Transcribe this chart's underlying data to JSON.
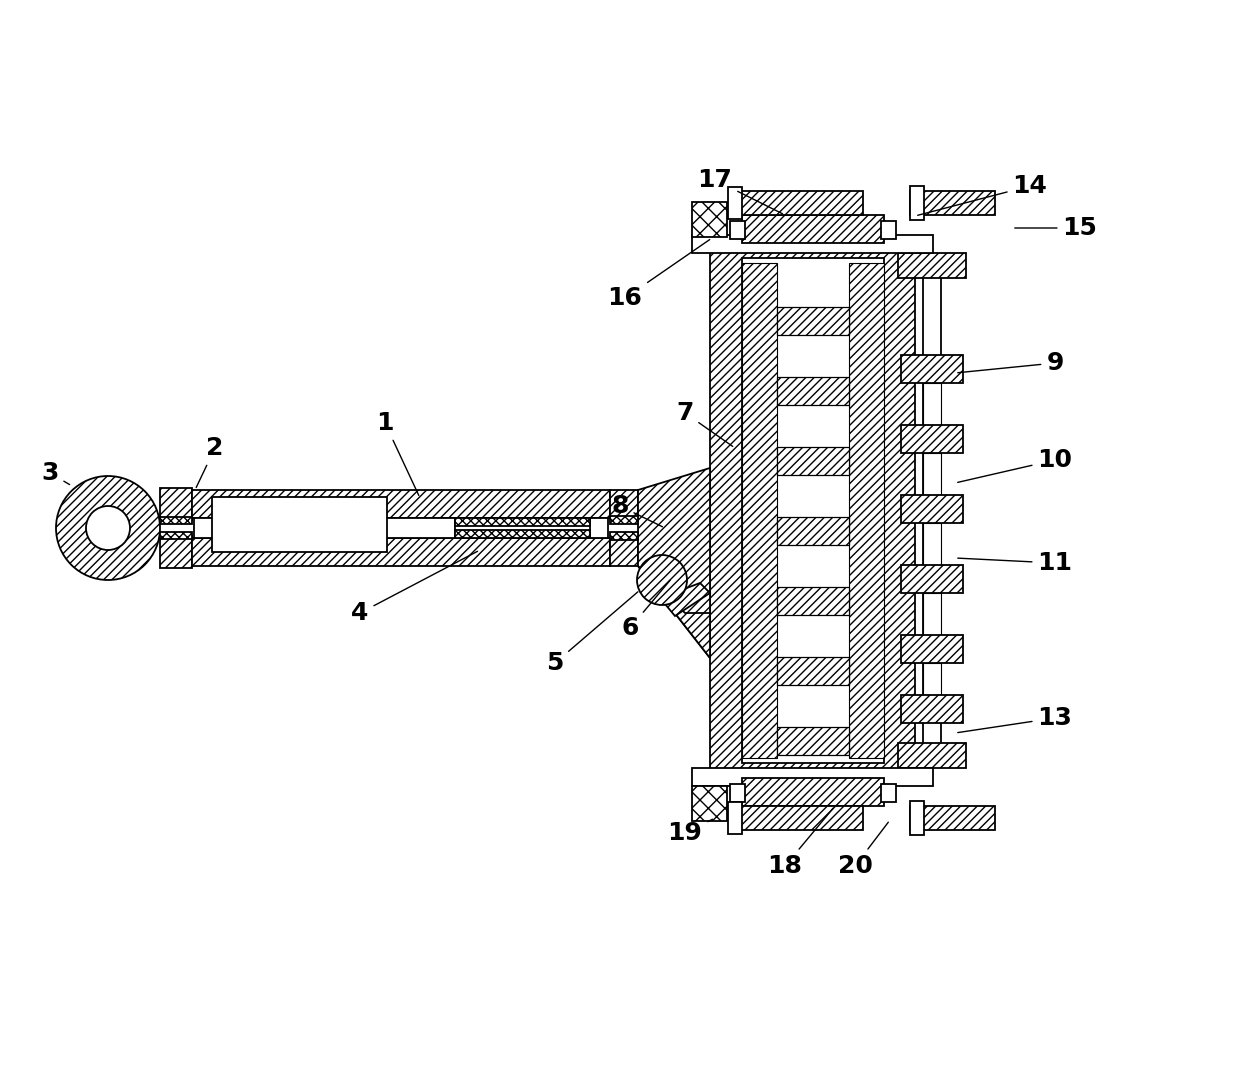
{
  "bg_color": "#ffffff",
  "line_color": "#000000",
  "fig_width": 12.4,
  "fig_height": 10.68,
  "dpi": 100,
  "label_fontsize": 18,
  "label_fontweight": "bold",
  "xlim": [
    0,
    12.4
  ],
  "ylim": [
    0,
    10.68
  ]
}
